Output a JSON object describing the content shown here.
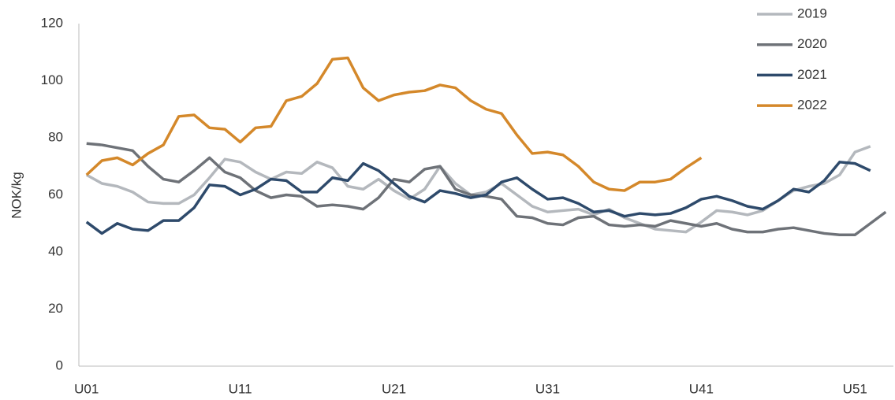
{
  "chart_data": {
    "type": "line",
    "ylabel": "NOK/kg",
    "categories": [
      "U01",
      null,
      null,
      null,
      null,
      null,
      null,
      null,
      null,
      null,
      "U11",
      null,
      null,
      null,
      null,
      null,
      null,
      null,
      null,
      null,
      "U21",
      null,
      null,
      null,
      null,
      null,
      null,
      null,
      null,
      null,
      "U31",
      null,
      null,
      null,
      null,
      null,
      null,
      null,
      null,
      null,
      "U41",
      null,
      null,
      null,
      null,
      null,
      null,
      null,
      null,
      null,
      "U51",
      null,
      null
    ],
    "series": [
      {
        "name": "2019",
        "color": "#b4b8bd",
        "values": [
          67,
          64,
          63,
          61,
          57.5,
          57,
          57,
          60,
          66,
          72.5,
          71.5,
          68,
          65.5,
          68,
          67.5,
          71.5,
          69.5,
          63,
          62,
          65.5,
          61.5,
          58.5,
          62,
          70,
          64,
          60,
          61,
          64,
          60,
          56,
          54,
          54.5,
          55,
          53,
          55,
          52,
          50,
          48,
          47.5,
          47,
          50.5,
          54.5,
          54,
          53,
          54.5,
          58,
          61.5,
          63,
          64,
          67,
          75,
          77,
          null
        ]
      },
      {
        "name": "2020",
        "color": "#6e7278",
        "values": [
          78,
          77.5,
          76.5,
          75.5,
          70,
          65.5,
          64.5,
          68.5,
          73,
          68,
          66,
          61.5,
          59,
          60,
          59.5,
          56,
          56.5,
          56,
          55,
          59,
          65.5,
          64.5,
          69,
          70,
          62,
          60,
          59.5,
          58.5,
          52.5,
          52,
          50,
          49.5,
          52,
          52.5,
          49.5,
          49,
          49.5,
          49,
          51,
          50,
          49,
          50,
          48,
          47,
          47,
          48,
          48.5,
          47.5,
          46.5,
          46,
          46,
          50,
          54
        ]
      },
      {
        "name": "2021",
        "color": "#2e4a6b",
        "values": [
          50.5,
          46.5,
          50,
          48,
          47.5,
          51,
          51,
          55.5,
          63.5,
          63,
          60,
          62,
          65.5,
          65,
          61,
          61,
          66,
          65,
          71,
          68.5,
          64,
          59.5,
          57.5,
          61.5,
          60.5,
          59,
          60,
          64.5,
          66,
          62,
          58.5,
          59,
          57,
          54,
          54.5,
          52.5,
          53.5,
          53,
          53.5,
          55.5,
          58.5,
          59.5,
          58,
          56,
          55,
          58,
          62,
          61,
          65,
          71.5,
          71,
          68.5,
          null
        ]
      },
      {
        "name": "2022",
        "color": "#d4882a",
        "values": [
          67,
          72,
          73,
          70.5,
          74.5,
          77.5,
          87.5,
          88,
          83.5,
          83,
          78.5,
          83.5,
          84,
          93,
          94.5,
          99,
          107.5,
          108,
          97.5,
          93,
          95,
          96,
          96.5,
          98.5,
          97.5,
          93,
          90,
          88.5,
          81,
          74.5,
          75,
          74,
          70,
          64.5,
          62,
          61.5,
          64.5,
          64.5,
          65.5,
          69.5,
          73,
          null,
          null,
          null,
          null,
          null,
          null,
          null,
          null,
          null,
          null,
          null,
          null
        ]
      }
    ],
    "ylim": [
      0,
      120
    ],
    "yticks": [
      0,
      20,
      40,
      60,
      80,
      100,
      120
    ],
    "legend": "top-right",
    "grid": false
  }
}
